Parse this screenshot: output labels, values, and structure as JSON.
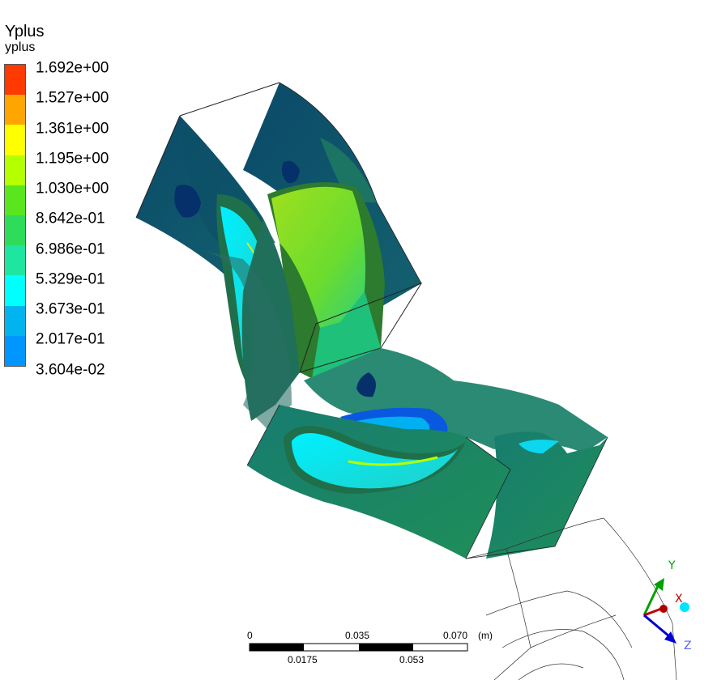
{
  "legend": {
    "title": "Yplus",
    "subtitle": "yplus",
    "labels": [
      "1.692e+00",
      "1.527e+00",
      "1.361e+00",
      "1.195e+00",
      "1.030e+00",
      "8.642e-01",
      "6.986e-01",
      "5.329e-01",
      "3.673e-01",
      "2.017e-01",
      "3.604e-02"
    ],
    "colors": [
      "#ff3a00",
      "#ffa500",
      "#ffff00",
      "#b4ff00",
      "#5ae61e",
      "#2edc5a",
      "#1ee6a0",
      "#00ffff",
      "#00b4f0",
      "#0096ff",
      "#0050ff"
    ]
  },
  "scale_bar": {
    "top_labels": [
      "0",
      "0.035",
      "0.070"
    ],
    "unit": "(m)",
    "bottom_labels": [
      "0.0175",
      "0.053"
    ]
  },
  "axes": {
    "labels": [
      "Y",
      "X",
      "Z"
    ],
    "colors": {
      "y": "#00a000",
      "x": "#c00000",
      "z": "#0000d0",
      "ball": "#00e5ff"
    }
  }
}
